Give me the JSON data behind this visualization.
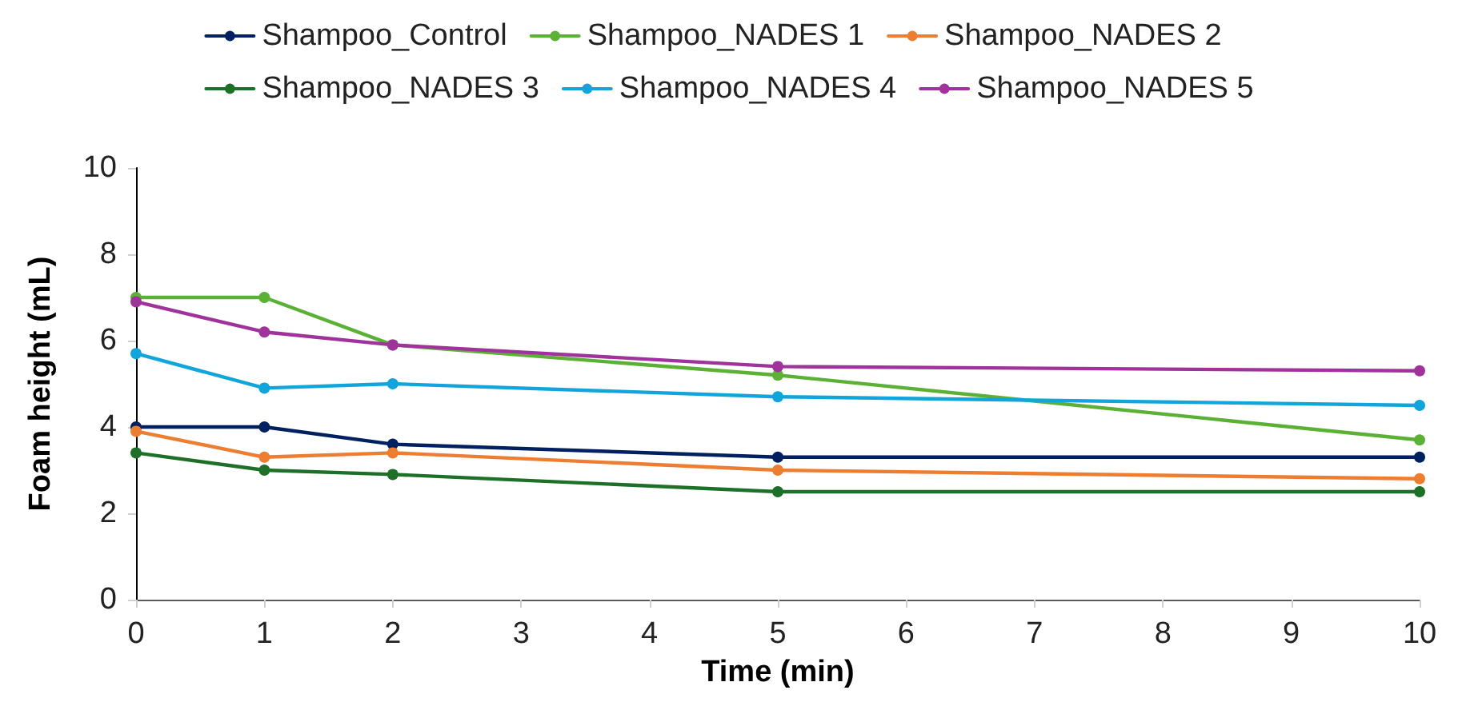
{
  "chart_data": {
    "type": "line",
    "xlabel": "Time (min)",
    "ylabel": "Foam height (mL)",
    "x": [
      0,
      1,
      2,
      5,
      10
    ],
    "series": [
      {
        "name": "Shampoo_Control",
        "color": "#002060",
        "values": [
          4.0,
          4.0,
          3.6,
          3.3,
          3.3
        ]
      },
      {
        "name": "Shampoo_NADES 1",
        "color": "#5bb135",
        "values": [
          7.0,
          7.0,
          5.9,
          5.2,
          3.7
        ]
      },
      {
        "name": "Shampoo_NADES 2",
        "color": "#ed7d31",
        "values": [
          3.9,
          3.3,
          3.4,
          3.0,
          2.8
        ]
      },
      {
        "name": "Shampoo_NADES 3",
        "color": "#1e7028",
        "values": [
          3.4,
          3.0,
          2.9,
          2.5,
          2.5
        ]
      },
      {
        "name": "Shampoo_NADES 4",
        "color": "#12a5dc",
        "values": [
          5.7,
          4.9,
          5.0,
          4.7,
          4.5
        ]
      },
      {
        "name": "Shampoo_NADES 5",
        "color": "#a0329b",
        "values": [
          6.9,
          6.2,
          5.9,
          5.4,
          5.3
        ]
      }
    ],
    "xlim": [
      0,
      10
    ],
    "xticks": [
      0,
      1,
      2,
      3,
      4,
      5,
      6,
      7,
      8,
      9,
      10
    ],
    "ylim": [
      0,
      10
    ],
    "yticks": [
      0,
      2,
      4,
      6,
      8,
      10
    ],
    "grid": false,
    "legend": "top",
    "marker": "circle",
    "line_style": "solid"
  }
}
